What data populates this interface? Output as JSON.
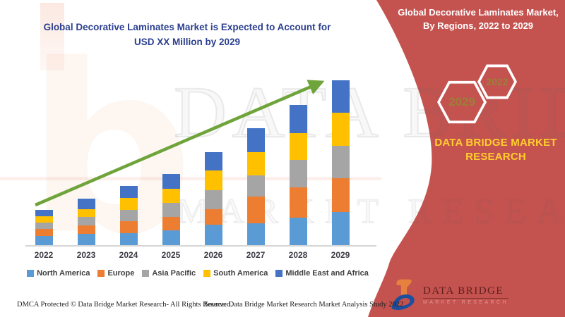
{
  "header": {
    "line1": "Global Decorative Laminates Market is Expected to Account for",
    "line2": "USD XX Million by 2029",
    "title_color": "#2B3F8F"
  },
  "banner": {
    "line1": "Global Decorative Laminates Market,",
    "line2": "By Regions, 2022 to 2029",
    "color": "#C4524F",
    "hexagons": [
      {
        "label": "2029"
      },
      {
        "label": "2022"
      }
    ],
    "hex_label_color": "#9C7F38",
    "brand_line1": "DATA BRIDGE MARKET",
    "brand_line2": "RESEARCH",
    "brand_color": "#FFCE2E"
  },
  "chart_data": {
    "type": "bar",
    "stacked": true,
    "title": "Global Decorative Laminates Market is Expected to Account for USD XX Million by 2029",
    "xlabel": "",
    "ylabel": "",
    "value_axis_visible": false,
    "legend_position": "bottom",
    "trend_arrow": true,
    "arrow_color": "#6FA43B",
    "categories": [
      "2022",
      "2023",
      "2024",
      "2025",
      "2026",
      "2027",
      "2028",
      "2029"
    ],
    "series": [
      {
        "name": "North America",
        "color": "#5B9BD5",
        "values": [
          13,
          16,
          17,
          21,
          29,
          31,
          39,
          47
        ]
      },
      {
        "name": "Europe",
        "color": "#ED7D31",
        "values": [
          10,
          12,
          17,
          19,
          22,
          38,
          43,
          48
        ]
      },
      {
        "name": "Asia Pacific",
        "color": "#A5A5A5",
        "values": [
          9,
          12,
          16,
          20,
          27,
          30,
          39,
          46
        ]
      },
      {
        "name": "South America",
        "color": "#FFC000",
        "values": [
          9,
          11,
          17,
          20,
          28,
          33,
          38,
          47
        ]
      },
      {
        "name": "Middle East and Africa",
        "color": "#4472C4",
        "values": [
          9,
          15,
          17,
          21,
          26,
          34,
          40,
          46
        ]
      }
    ],
    "totals": [
      50,
      66,
      84,
      101,
      132,
      166,
      199,
      234
    ],
    "units": "relative height (values shown as USD XX Million)"
  },
  "watermark": {
    "line1": "DATA BRIDGE",
    "line2": "MARKET RESEARCH",
    "letter_b": "b"
  },
  "logo": {
    "line1": "DATA BRIDGE",
    "line2": "MARKET RESEARCH"
  },
  "footer": {
    "left": "DMCA Protected © Data Bridge Market Research- All Rights Reserved.",
    "source": "Source: Data Bridge Market Research Market Analysis Study 2022"
  }
}
